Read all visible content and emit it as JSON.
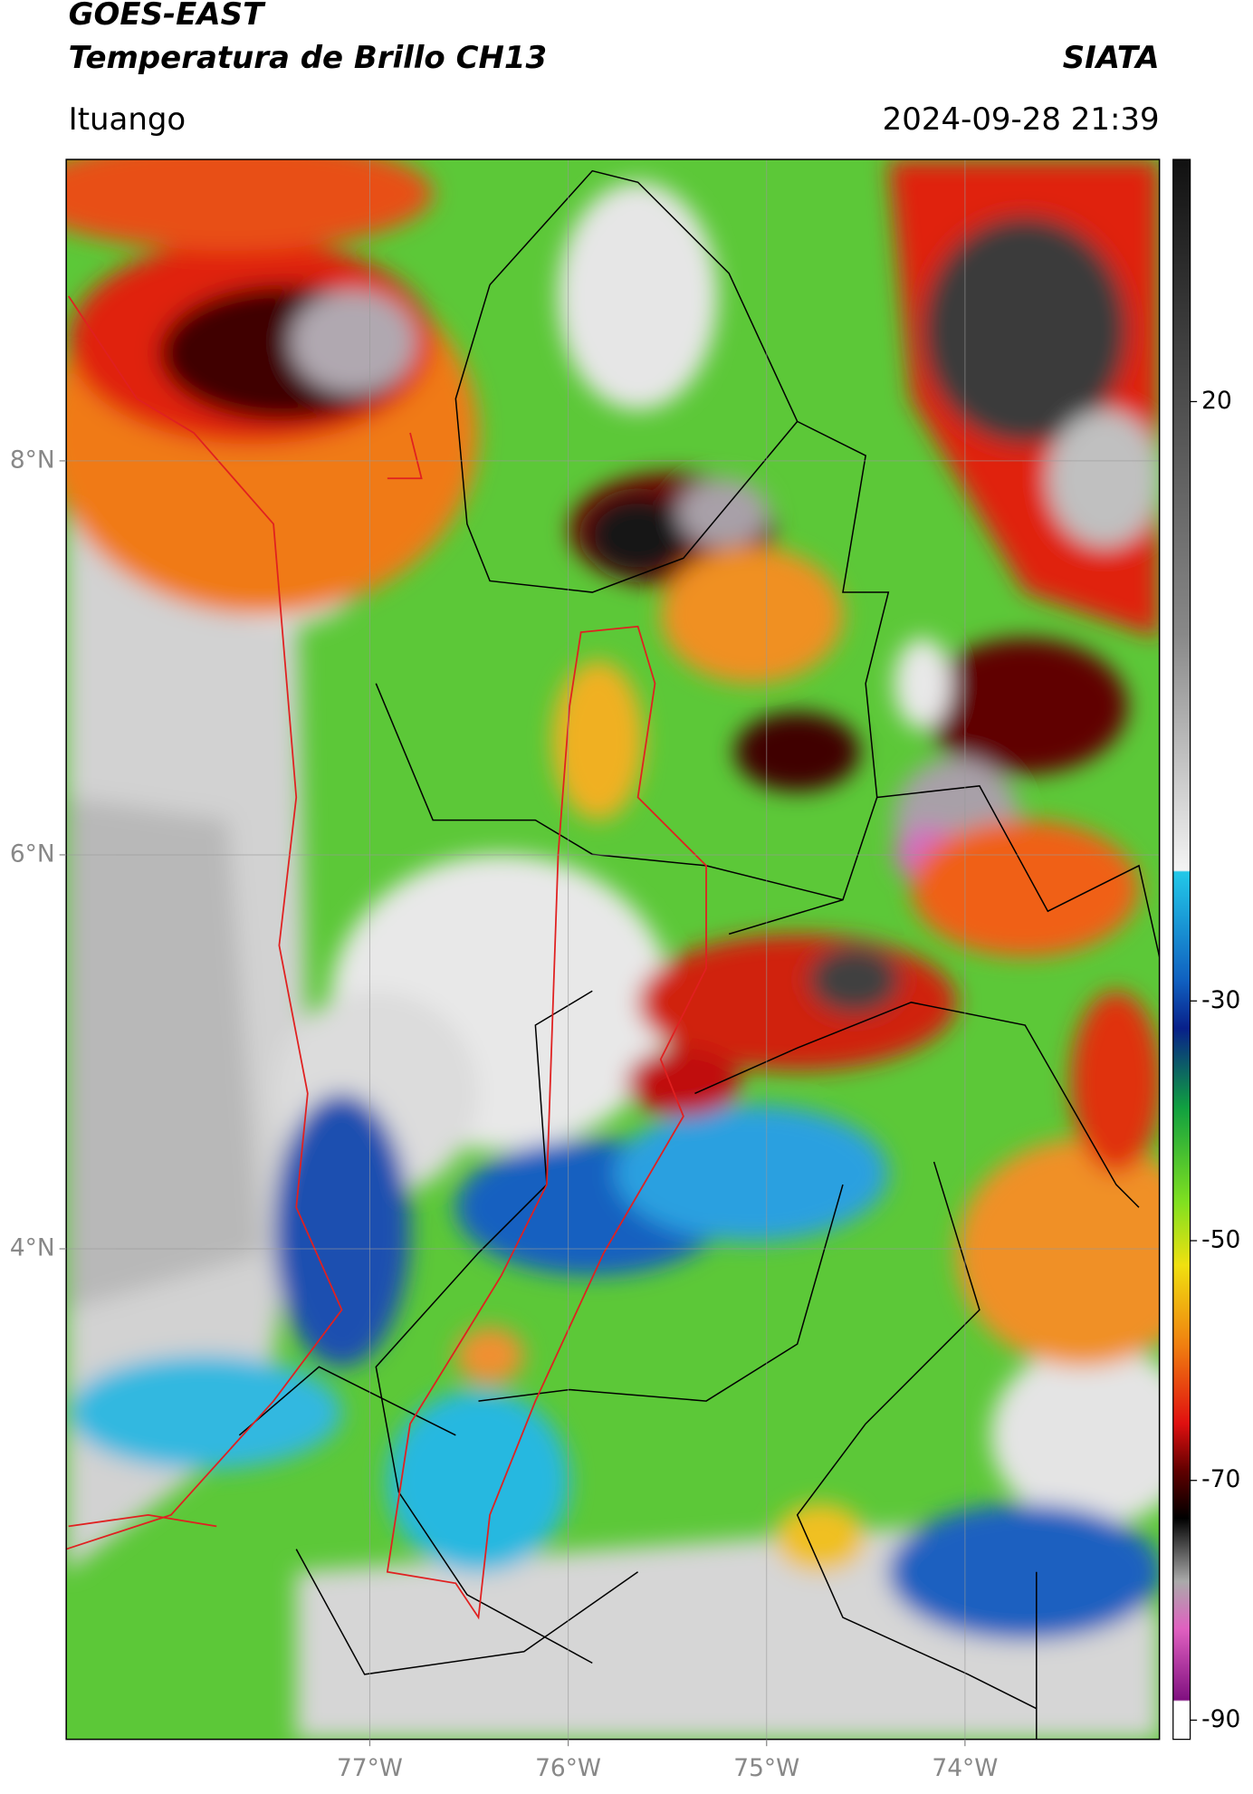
{
  "header": {
    "title": "GOES-EAST",
    "subtitle": "Temperatura de Brillo CH13",
    "source": "SIATA",
    "location": "Ituango",
    "datetime": "2024-09-28 21:39"
  },
  "map": {
    "xlim": [
      -78.53,
      -73.02
    ],
    "ylim": [
      1.51,
      9.53
    ],
    "xticks": [
      {
        "value": -77,
        "label": "77°W"
      },
      {
        "value": -76,
        "label": "76°W"
      },
      {
        "value": -75,
        "label": "75°W"
      },
      {
        "value": -74,
        "label": "74°W"
      }
    ],
    "yticks": [
      {
        "value": 8,
        "label": "8°N"
      },
      {
        "value": 6,
        "label": "6°N"
      },
      {
        "value": 4,
        "label": "4°N"
      }
    ]
  },
  "colorbar": {
    "lim": [
      -91.6,
      40.2
    ],
    "ticks": [
      20,
      -30,
      -50,
      -70,
      -90
    ]
  }
}
